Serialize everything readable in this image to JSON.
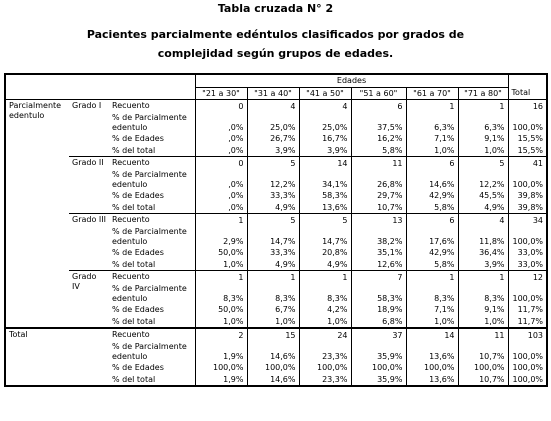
{
  "header": {
    "title": "Tabla cruzada N° 2",
    "subtitle_lines": [
      "Pacientes parcialmente edéntulos clasificados por grados de",
      "complejidad según grupos de edades."
    ]
  },
  "table": {
    "row_variable": "Parcialmente edentulo",
    "column_variable": "Edades",
    "columns": [
      "\"21 a 30\"",
      "\"31 a 40\"",
      "\"41 a 50\"",
      "\"51 a 60\"",
      "\"61 a 70\"",
      "\"71 a 80\"",
      "Total"
    ],
    "statistics": [
      "Recuento",
      "% de Parcialmente edentulo",
      "% de Edades",
      "% del total"
    ],
    "groups": [
      {
        "label": "Grado I",
        "rows": [
          [
            "0",
            "4",
            "4",
            "6",
            "1",
            "1",
            "16"
          ],
          [
            ",0%",
            "25,0%",
            "25,0%",
            "37,5%",
            "6,3%",
            "6,3%",
            "100,0%"
          ],
          [
            ",0%",
            "26,7%",
            "16,7%",
            "16,2%",
            "7,1%",
            "9,1%",
            "15,5%"
          ],
          [
            ",0%",
            "3,9%",
            "3,9%",
            "5,8%",
            "1,0%",
            "1,0%",
            "15,5%"
          ]
        ]
      },
      {
        "label": "Grado II",
        "rows": [
          [
            "0",
            "5",
            "14",
            "11",
            "6",
            "5",
            "41"
          ],
          [
            ",0%",
            "12,2%",
            "34,1%",
            "26,8%",
            "14,6%",
            "12,2%",
            "100,0%"
          ],
          [
            ",0%",
            "33,3%",
            "58,3%",
            "29,7%",
            "42,9%",
            "45,5%",
            "39,8%"
          ],
          [
            ",0%",
            "4,9%",
            "13,6%",
            "10,7%",
            "5,8%",
            "4,9%",
            "39,8%"
          ]
        ]
      },
      {
        "label": "Grado III",
        "rows": [
          [
            "1",
            "5",
            "5",
            "13",
            "6",
            "4",
            "34"
          ],
          [
            "2,9%",
            "14,7%",
            "14,7%",
            "38,2%",
            "17,6%",
            "11,8%",
            "100,0%"
          ],
          [
            "50,0%",
            "33,3%",
            "20,8%",
            "35,1%",
            "42,9%",
            "36,4%",
            "33,0%"
          ],
          [
            "1,0%",
            "4,9%",
            "4,9%",
            "12,6%",
            "5,8%",
            "3,9%",
            "33,0%"
          ]
        ]
      },
      {
        "label": "Grado IV",
        "rows": [
          [
            "1",
            "1",
            "1",
            "7",
            "1",
            "1",
            "12"
          ],
          [
            "8,3%",
            "8,3%",
            "8,3%",
            "58,3%",
            "8,3%",
            "8,3%",
            "100,0%"
          ],
          [
            "50,0%",
            "6,7%",
            "4,2%",
            "18,9%",
            "7,1%",
            "9,1%",
            "11,7%"
          ],
          [
            "1,0%",
            "1,0%",
            "1,0%",
            "6,8%",
            "1,0%",
            "1,0%",
            "11,7%"
          ]
        ]
      }
    ],
    "total": {
      "label": "Total",
      "rows": [
        [
          "2",
          "15",
          "24",
          "37",
          "14",
          "11",
          "103"
        ],
        [
          "1,9%",
          "14,6%",
          "23,3%",
          "35,9%",
          "13,6%",
          "10,7%",
          "100,0%"
        ],
        [
          "100,0%",
          "100,0%",
          "100,0%",
          "100,0%",
          "100,0%",
          "100,0%",
          "100,0%"
        ],
        [
          "1,9%",
          "14,6%",
          "23,3%",
          "35,9%",
          "13,6%",
          "10,7%",
          "100,0%"
        ]
      ]
    }
  }
}
